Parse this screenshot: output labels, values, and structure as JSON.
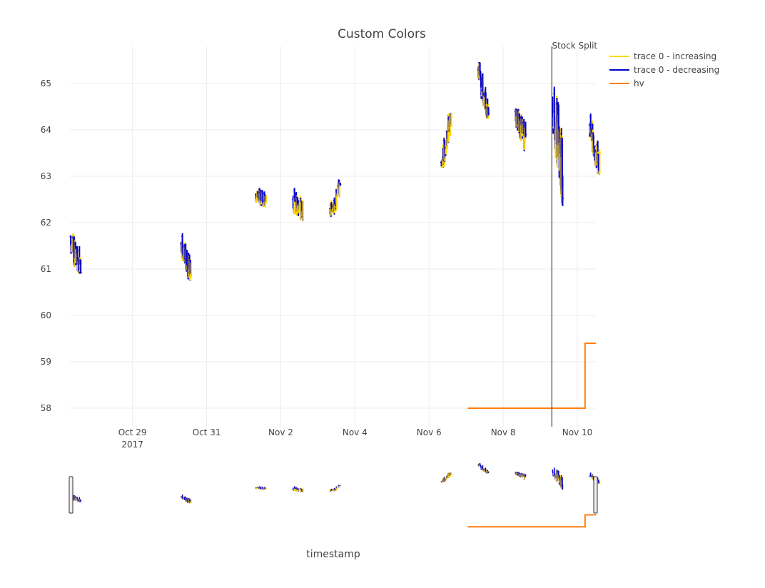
{
  "chart_data": {
    "type": "ohlc",
    "title": "Custom Colors",
    "xlabel": "timestamp",
    "ylabel": "",
    "x_axis_type": "date",
    "xlim": [
      "2017-10-27T07:30:00",
      "2017-11-10T12:00:00"
    ],
    "ylim": [
      57.6,
      65.8
    ],
    "x_ticks": [
      {
        "date": "2017-10-29",
        "label": "Oct 29",
        "sublabel": "2017"
      },
      {
        "date": "2017-10-31",
        "label": "Oct 31",
        "sublabel": ""
      },
      {
        "date": "2017-11-02",
        "label": "Nov 2",
        "sublabel": ""
      },
      {
        "date": "2017-11-04",
        "label": "Nov 4",
        "sublabel": ""
      },
      {
        "date": "2017-11-06",
        "label": "Nov 6",
        "sublabel": ""
      },
      {
        "date": "2017-11-08",
        "label": "Nov 8",
        "sublabel": ""
      },
      {
        "date": "2017-11-10",
        "label": "Nov 10",
        "sublabel": ""
      }
    ],
    "y_ticks": [
      58,
      59,
      60,
      61,
      62,
      63,
      64,
      65
    ],
    "grid": true,
    "legend_position": "top-right",
    "legend": [
      {
        "name": "trace 0 - increasing",
        "color": "#ffd700"
      },
      {
        "name": "trace 0 - decreasing",
        "color": "#0000cd"
      },
      {
        "name": "hv",
        "color": "#ff7f0e"
      }
    ],
    "increasing_color": "#ffd700",
    "decreasing_color": "#0000cd",
    "hv_color": "#ff7f0e",
    "annotation": {
      "text": "Stock Split",
      "date": "2017-11-09T07:30:00"
    },
    "rangeslider": true,
    "hv_series": {
      "name": "hv",
      "x": [
        "2017-11-07T01:00:00",
        "2017-11-10T05:00:00",
        "2017-11-10T05:00:00",
        "2017-11-10T12:00:00"
      ],
      "y": [
        58.0,
        58.0,
        59.4,
        59.4
      ]
    },
    "segments": [
      {
        "start": "2017-10-27T08:00:00",
        "end": "2017-10-27T14:30:00",
        "open": 61.7,
        "close": 61.0,
        "high": 62.15,
        "low": 60.9,
        "n": 32,
        "seed": 11
      },
      {
        "start": "2017-10-30T07:30:00",
        "end": "2017-10-30T14:00:00",
        "open": 61.55,
        "close": 60.85,
        "high": 61.85,
        "low": 60.75,
        "n": 32,
        "seed": 23
      },
      {
        "start": "2017-11-01T08:00:00",
        "end": "2017-11-01T14:30:00",
        "open": 62.6,
        "close": 62.45,
        "high": 62.92,
        "low": 62.28,
        "n": 30,
        "seed": 37
      },
      {
        "start": "2017-11-02T08:00:00",
        "end": "2017-11-02T14:30:00",
        "open": 62.5,
        "close": 62.3,
        "high": 62.75,
        "low": 61.75,
        "n": 30,
        "seed": 41
      },
      {
        "start": "2017-11-03T08:00:00",
        "end": "2017-11-03T14:30:00",
        "open": 62.3,
        "close": 62.75,
        "high": 62.92,
        "low": 61.85,
        "n": 30,
        "seed": 53
      },
      {
        "start": "2017-11-06T08:00:00",
        "end": "2017-11-06T14:30:00",
        "open": 63.3,
        "close": 64.3,
        "high": 64.35,
        "low": 63.2,
        "n": 34,
        "seed": 67
      },
      {
        "start": "2017-11-07T08:00:00",
        "end": "2017-11-07T14:30:00",
        "open": 65.3,
        "close": 64.3,
        "high": 65.45,
        "low": 64.25,
        "n": 34,
        "seed": 71
      },
      {
        "start": "2017-11-08T08:00:00",
        "end": "2017-11-08T14:30:00",
        "open": 64.4,
        "close": 63.8,
        "high": 64.45,
        "low": 63.2,
        "n": 32,
        "seed": 83
      },
      {
        "start": "2017-11-09T08:00:00",
        "end": "2017-11-09T14:30:00",
        "open": 64.7,
        "close": 63.0,
        "high": 65.15,
        "low": 62.3,
        "n": 36,
        "seed": 97
      },
      {
        "start": "2017-11-10T08:00:00",
        "end": "2017-11-10T14:30:00",
        "open": 64.1,
        "close": 63.2,
        "high": 64.35,
        "low": 63.05,
        "n": 32,
        "seed": 101
      }
    ]
  }
}
